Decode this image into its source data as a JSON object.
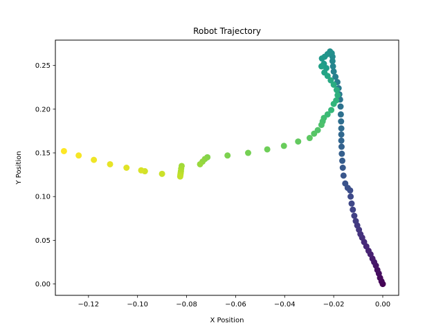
{
  "chart_data": {
    "type": "scatter",
    "title": "Robot Trajectory",
    "xlabel": "X Position",
    "ylabel": "Y Position",
    "xlim": [
      -0.1335,
      0.0065
    ],
    "ylim": [
      -0.013,
      0.279
    ],
    "grid": false,
    "colormap": "viridis",
    "x_ticks": [
      -0.12,
      -0.1,
      -0.08,
      -0.06,
      -0.04,
      -0.02,
      0.0
    ],
    "x_tick_labels": [
      "−0.12",
      "−0.10",
      "−0.08",
      "−0.06",
      "−0.04",
      "−0.02",
      "0.00"
    ],
    "y_ticks": [
      0.0,
      0.05,
      0.1,
      0.15,
      0.2,
      0.25
    ],
    "y_tick_labels": [
      "0.00",
      "0.05",
      "0.10",
      "0.15",
      "0.20",
      "0.25"
    ],
    "points": [
      [
        0.0,
        0.0
      ],
      [
        -0.0005,
        0.003
      ],
      [
        -0.0011,
        0.007
      ],
      [
        -0.0016,
        0.012
      ],
      [
        -0.0022,
        0.016
      ],
      [
        -0.0028,
        0.021
      ],
      [
        -0.0035,
        0.025
      ],
      [
        -0.0042,
        0.029
      ],
      [
        -0.005,
        0.034
      ],
      [
        -0.0058,
        0.038
      ],
      [
        -0.0067,
        0.043
      ],
      [
        -0.0076,
        0.048
      ],
      [
        -0.0084,
        0.053
      ],
      [
        -0.0091,
        0.057
      ],
      [
        -0.0097,
        0.062
      ],
      [
        -0.0104,
        0.067
      ],
      [
        -0.011,
        0.072
      ],
      [
        -0.0116,
        0.078
      ],
      [
        -0.0122,
        0.085
      ],
      [
        -0.0127,
        0.092
      ],
      [
        -0.0131,
        0.1
      ],
      [
        -0.0133,
        0.107
      ],
      [
        -0.0143,
        0.11
      ],
      [
        -0.0153,
        0.115
      ],
      [
        -0.016,
        0.124
      ],
      [
        -0.0163,
        0.133
      ],
      [
        -0.0165,
        0.141
      ],
      [
        -0.0167,
        0.149
      ],
      [
        -0.0168,
        0.157
      ],
      [
        -0.0169,
        0.164
      ],
      [
        -0.0169,
        0.171
      ],
      [
        -0.0169,
        0.178
      ],
      [
        -0.017,
        0.186
      ],
      [
        -0.0171,
        0.194
      ],
      [
        -0.0172,
        0.203
      ],
      [
        -0.0174,
        0.211
      ],
      [
        -0.0177,
        0.217
      ],
      [
        -0.018,
        0.224
      ],
      [
        -0.0185,
        0.231
      ],
      [
        -0.0193,
        0.237
      ],
      [
        -0.02,
        0.243
      ],
      [
        -0.0203,
        0.249
      ],
      [
        -0.0205,
        0.255
      ],
      [
        -0.0205,
        0.26
      ],
      [
        -0.0208,
        0.264
      ],
      [
        -0.0215,
        0.266
      ],
      [
        -0.0225,
        0.263
      ],
      [
        -0.0237,
        0.26
      ],
      [
        -0.0248,
        0.258
      ],
      [
        -0.024,
        0.252
      ],
      [
        -0.023,
        0.247
      ],
      [
        -0.025,
        0.249
      ],
      [
        -0.0238,
        0.242
      ],
      [
        -0.0225,
        0.238
      ],
      [
        -0.0212,
        0.233
      ],
      [
        -0.02,
        0.228
      ],
      [
        -0.0188,
        0.222
      ],
      [
        -0.0184,
        0.216
      ],
      [
        -0.019,
        0.21
      ],
      [
        -0.02,
        0.206
      ],
      [
        -0.021,
        0.199
      ],
      [
        -0.0225,
        0.194
      ],
      [
        -0.024,
        0.19
      ],
      [
        -0.0245,
        0.186
      ],
      [
        -0.025,
        0.182
      ],
      [
        -0.0265,
        0.176
      ],
      [
        -0.028,
        0.172
      ],
      [
        -0.0298,
        0.167
      ],
      [
        -0.0345,
        0.163
      ],
      [
        -0.0403,
        0.158
      ],
      [
        -0.0471,
        0.154
      ],
      [
        -0.0549,
        0.15
      ],
      [
        -0.0633,
        0.147
      ],
      [
        -0.0715,
        0.145
      ],
      [
        -0.0725,
        0.143
      ],
      [
        -0.0735,
        0.14
      ],
      [
        -0.0745,
        0.137
      ],
      [
        -0.082,
        0.135
      ],
      [
        -0.0822,
        0.132
      ],
      [
        -0.0823,
        0.129
      ],
      [
        -0.0824,
        0.127
      ],
      [
        -0.0825,
        0.125
      ],
      [
        -0.0826,
        0.123
      ],
      [
        -0.09,
        0.126
      ],
      [
        -0.097,
        0.129
      ],
      [
        -0.0985,
        0.13
      ],
      [
        -0.1045,
        0.133
      ],
      [
        -0.1112,
        0.137
      ],
      [
        -0.1178,
        0.142
      ],
      [
        -0.124,
        0.147
      ],
      [
        -0.13,
        0.152
      ]
    ]
  }
}
